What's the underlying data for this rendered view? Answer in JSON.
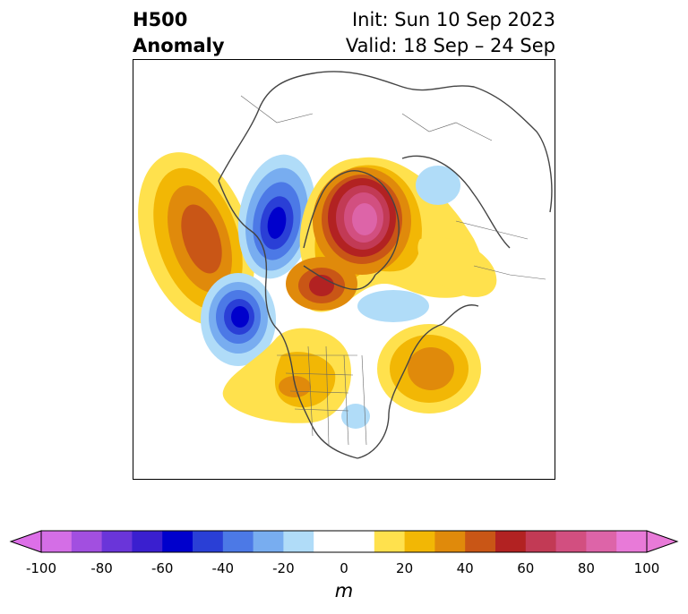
{
  "header": {
    "title_line1": "H500",
    "title_line2": "Anomaly",
    "init": "Init: Sun 10 Sep 2023",
    "valid": "Valid: 18 Sep – 24 Sep"
  },
  "colorbar": {
    "unit": "m",
    "ticks": [
      "-100",
      "-80",
      "-60",
      "-40",
      "-20",
      "0",
      "20",
      "40",
      "60",
      "80",
      "100"
    ],
    "range": [
      -100,
      100
    ],
    "colors": [
      "#d46ee6",
      "#a24fe0",
      "#6a35d9",
      "#3a1fcf",
      "#0000cc",
      "#2a3fd6",
      "#4c79e6",
      "#78adf0",
      "#b0dcf8",
      "#ffffff",
      "#ffffff",
      "#ffe14d",
      "#f2b705",
      "#e08a0b",
      "#c95616",
      "#b22222",
      "#c23a55",
      "#d24f80",
      "#dd64a8",
      "#e87ad8"
    ],
    "under_color": "#dd6fe8",
    "over_color": "#e87ad8"
  }
}
